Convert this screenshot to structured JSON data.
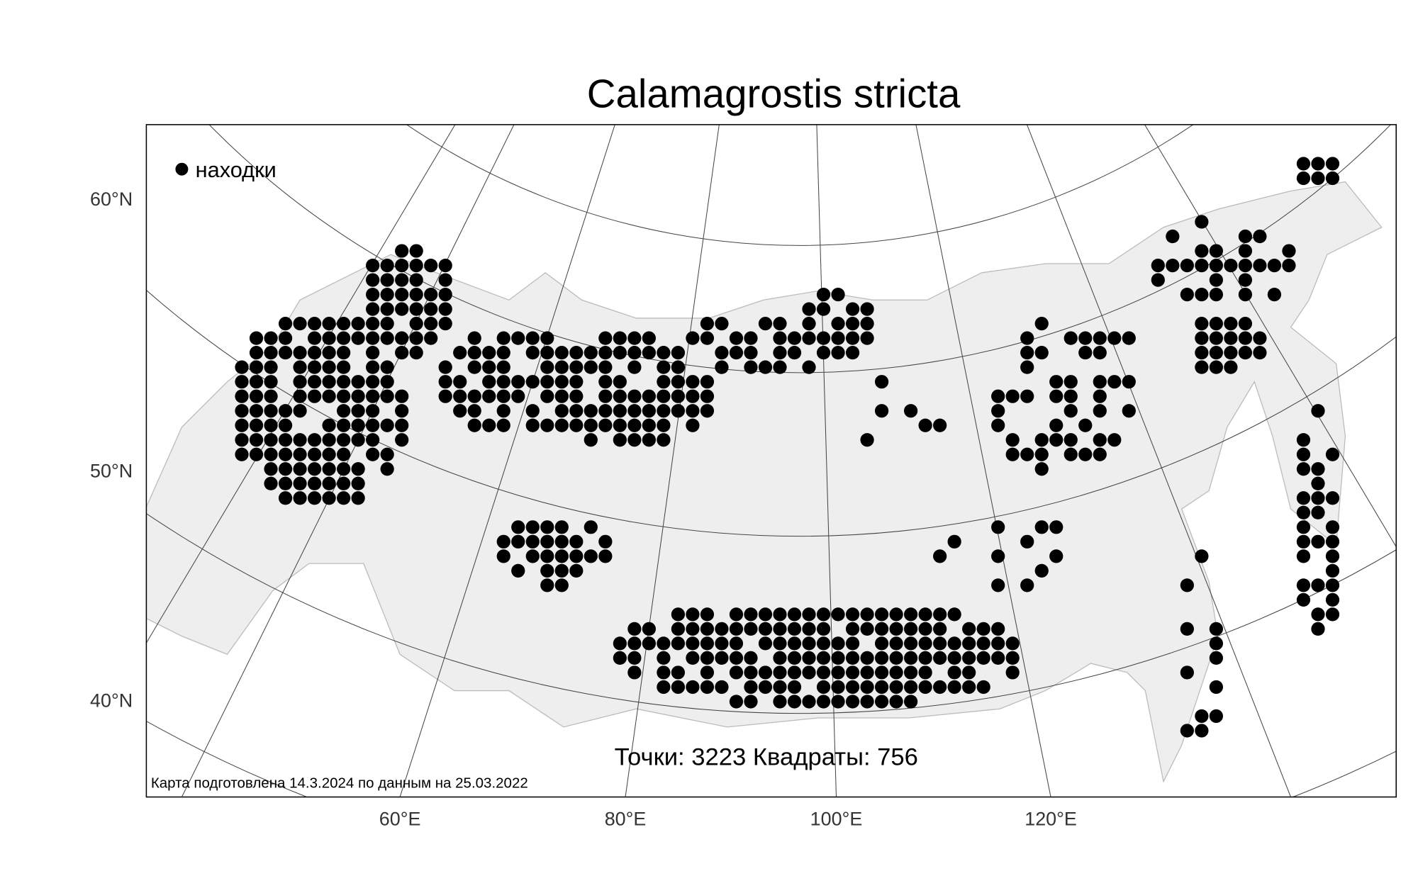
{
  "title": "Calamagrostis stricta",
  "legend": {
    "label": "находки",
    "marker": "filled-circle",
    "color": "#000000"
  },
  "stats": "Точки: 3223 Квадраты: 756",
  "footer": "Карта подготовлена 14.3.2024 по данным на 25.03.2022",
  "axes": {
    "lat_labels": [
      "60°N",
      "50°N",
      "40°N"
    ],
    "lon_labels": [
      "60°E",
      "80°E",
      "100°E",
      "120°E"
    ]
  },
  "colors": {
    "land": "#eeeeee",
    "coast": "#bbbbbb",
    "dots": "#000000",
    "graticule": "#444444"
  }
}
